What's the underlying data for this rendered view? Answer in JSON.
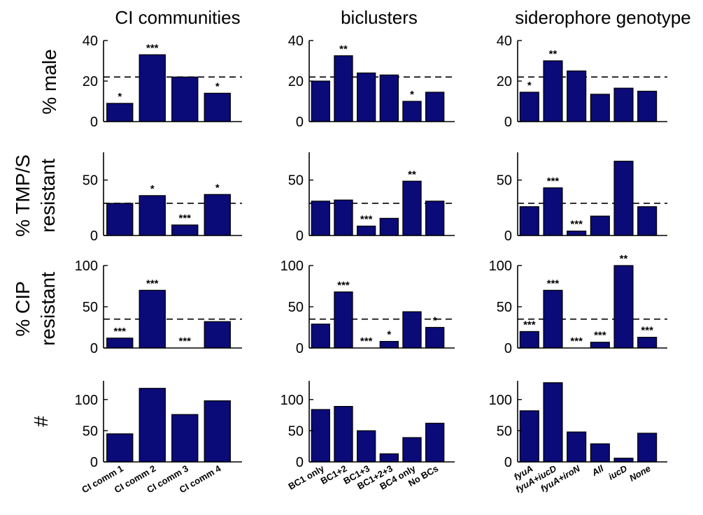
{
  "figure": {
    "column_titles": [
      "CI communities",
      "biclusters",
      "siderophore genotype"
    ],
    "row_labels": [
      [
        "% male"
      ],
      [
        "% TMP/S",
        "resistant"
      ],
      [
        "% CIP",
        "resistant"
      ],
      [
        "#"
      ]
    ]
  },
  "colors": {
    "bar_fill": "#0a0a78",
    "bar_edge": "#000000",
    "reference_line": "#000000"
  },
  "chart_data": [
    {
      "type": "bar",
      "row": "% male",
      "column": "CI communities",
      "categories": [
        "CI comm 1",
        "CI comm 2",
        "CI comm 3",
        "CI comm 4"
      ],
      "values": [
        9,
        33,
        22,
        14
      ],
      "significance": [
        "*",
        "***",
        "",
        "*"
      ],
      "reference_line": 22,
      "yticks": [
        0,
        20,
        40
      ],
      "ylim": [
        0,
        40
      ],
      "show_xticklabels": false
    },
    {
      "type": "bar",
      "row": "% male",
      "column": "biclusters",
      "categories": [
        "BC1 only",
        "BC1+2",
        "BC1+3",
        "BC1+2+3",
        "BC4 only",
        "No BCs"
      ],
      "values": [
        20,
        32.5,
        24,
        23,
        10,
        14.5
      ],
      "significance": [
        "",
        "**",
        "",
        "",
        "*",
        ""
      ],
      "reference_line": 22,
      "yticks": [
        0,
        20,
        40
      ],
      "ylim": [
        0,
        40
      ],
      "show_xticklabels": false
    },
    {
      "type": "bar",
      "row": "% male",
      "column": "siderophore genotype",
      "categories": [
        "fyuA",
        "fyuA+iucD",
        "fyuA+iroN",
        "All",
        "iucD",
        "None"
      ],
      "values": [
        14.5,
        30,
        25,
        13.5,
        16.5,
        15
      ],
      "significance": [
        "*",
        "**",
        "",
        "",
        "",
        ""
      ],
      "reference_line": 22,
      "yticks": [
        0,
        20,
        40
      ],
      "ylim": [
        0,
        40
      ],
      "show_xticklabels": false
    },
    {
      "type": "bar",
      "row": "% TMP/S resistant",
      "column": "CI communities",
      "categories": [
        "CI comm 1",
        "CI comm 2",
        "CI comm 3",
        "CI comm 4"
      ],
      "values": [
        29,
        36,
        9.5,
        37
      ],
      "significance": [
        "",
        "*",
        "***",
        "*"
      ],
      "reference_line": 29,
      "yticks": [
        0,
        50
      ],
      "ylim": [
        0,
        75
      ],
      "show_xticklabels": false
    },
    {
      "type": "bar",
      "row": "% TMP/S resistant",
      "column": "biclusters",
      "categories": [
        "BC1 only",
        "BC1+2",
        "BC1+3",
        "BC1+2+3",
        "BC4 only",
        "No BCs"
      ],
      "values": [
        31,
        32,
        8.5,
        15.5,
        49,
        31
      ],
      "significance": [
        "",
        "",
        "***",
        "",
        "**",
        ""
      ],
      "reference_line": 29,
      "yticks": [
        0,
        50
      ],
      "ylim": [
        0,
        75
      ],
      "show_xticklabels": false
    },
    {
      "type": "bar",
      "row": "% TMP/S resistant",
      "column": "siderophore genotype",
      "categories": [
        "fyuA",
        "fyuA+iucD",
        "fyuA+iroN",
        "All",
        "iucD",
        "None"
      ],
      "values": [
        26,
        43,
        4,
        17.5,
        67,
        26
      ],
      "significance": [
        "",
        "***",
        "***",
        "",
        "",
        ""
      ],
      "reference_line": 29,
      "yticks": [
        0,
        50
      ],
      "ylim": [
        0,
        75
      ],
      "show_xticklabels": false
    },
    {
      "type": "bar",
      "row": "% CIP resistant",
      "column": "CI communities",
      "categories": [
        "CI comm 1",
        "CI comm 2",
        "CI comm 3",
        "CI comm 4"
      ],
      "values": [
        12,
        70,
        0,
        32
      ],
      "significance": [
        "***",
        "***",
        "***",
        ""
      ],
      "reference_line": 35,
      "yticks": [
        0,
        50,
        100
      ],
      "ylim": [
        0,
        100
      ],
      "show_xticklabels": false
    },
    {
      "type": "bar",
      "row": "% CIP resistant",
      "column": "biclusters",
      "categories": [
        "BC1 only",
        "BC1+2",
        "BC1+3",
        "BC1+2+3",
        "BC4 only",
        "No BCs"
      ],
      "values": [
        29,
        68,
        0,
        8,
        44,
        25
      ],
      "significance": [
        "",
        "***",
        "***",
        "*",
        "",
        "*"
      ],
      "reference_line": 35,
      "yticks": [
        0,
        50,
        100
      ],
      "ylim": [
        0,
        100
      ],
      "show_xticklabels": false
    },
    {
      "type": "bar",
      "row": "% CIP resistant",
      "column": "siderophore genotype",
      "categories": [
        "fyuA",
        "fyuA+iucD",
        "fyuA+iroN",
        "All",
        "iucD",
        "None"
      ],
      "values": [
        20,
        70,
        0,
        7,
        100,
        13
      ],
      "significance": [
        "***",
        "***",
        "***",
        "***",
        "**",
        "***"
      ],
      "reference_line": 35,
      "yticks": [
        0,
        50,
        100
      ],
      "ylim": [
        0,
        100
      ],
      "show_xticklabels": false
    },
    {
      "type": "bar",
      "row": "#",
      "column": "CI communities",
      "categories": [
        "CI comm 1",
        "CI comm 2",
        "CI comm 3",
        "CI comm 4"
      ],
      "values": [
        45,
        118,
        76,
        98
      ],
      "yticks": [
        0,
        50,
        100
      ],
      "ylim": [
        0,
        130
      ],
      "show_xticklabels": true,
      "italic_xticklabels": false
    },
    {
      "type": "bar",
      "row": "#",
      "column": "biclusters",
      "categories": [
        "BC1 only",
        "BC1+2",
        "BC1+3",
        "BC1+2+3",
        "BC4 only",
        "No BCs"
      ],
      "values": [
        84,
        89,
        50,
        13,
        39,
        62
      ],
      "yticks": [
        0,
        50,
        100
      ],
      "ylim": [
        0,
        130
      ],
      "show_xticklabels": true,
      "italic_xticklabels": false
    },
    {
      "type": "bar",
      "row": "#",
      "column": "siderophore genotype",
      "categories": [
        "fyuA",
        "fyuA+iucD",
        "fyuA+iroN",
        "All",
        "iucD",
        "None"
      ],
      "values": [
        82,
        127,
        48,
        29,
        6,
        46
      ],
      "yticks": [
        0,
        50,
        100
      ],
      "ylim": [
        0,
        130
      ],
      "show_xticklabels": true,
      "italic_xticklabels": true
    }
  ]
}
